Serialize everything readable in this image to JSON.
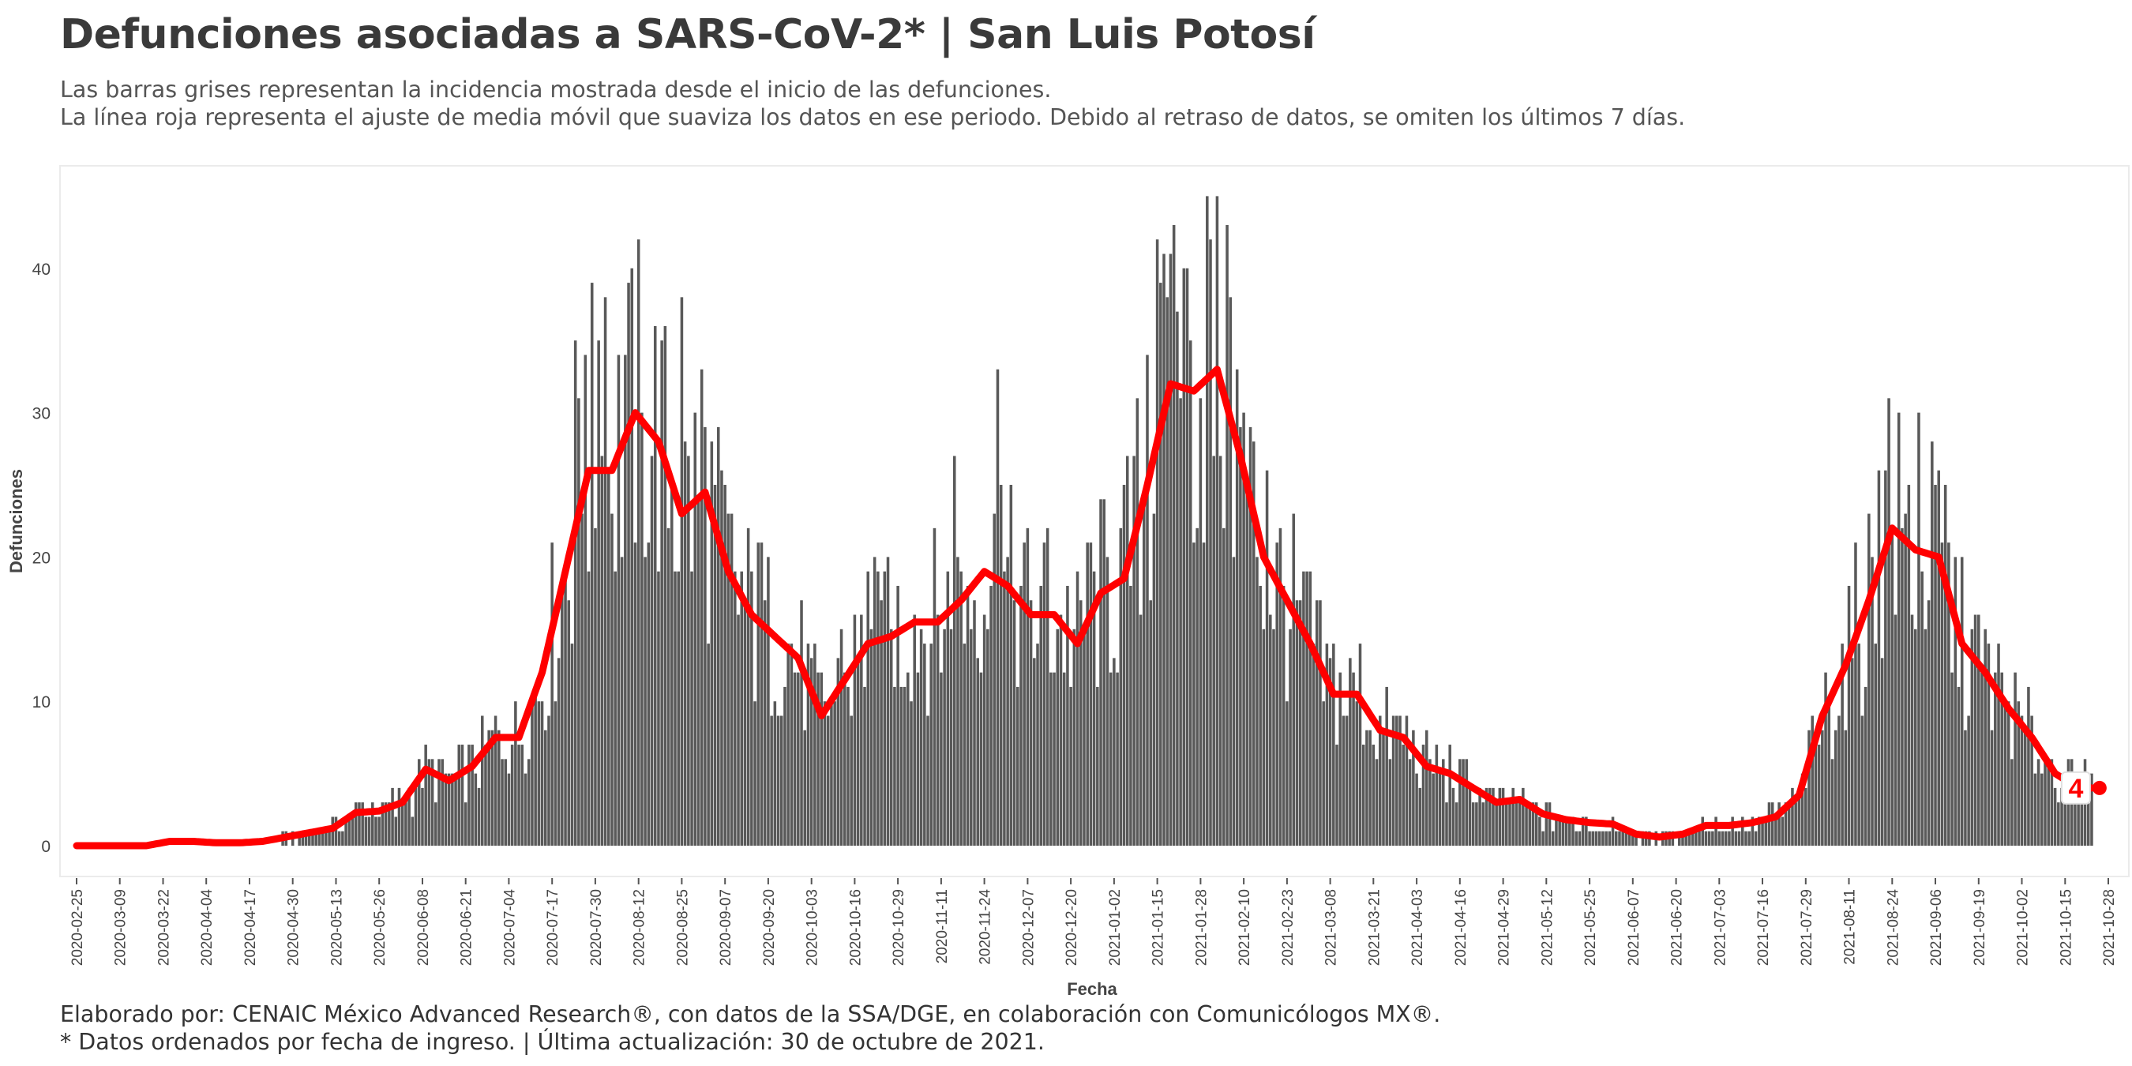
{
  "header": {
    "title": "Defunciones asociadas a SARS-CoV-2* | San Luis Potosí",
    "subtitle_1": "Las barras grises representan la incidencia mostrada desde el inicio de las defunciones.",
    "subtitle_2": "La línea roja representa el ajuste de media móvil que suaviza los datos en ese periodo. Debido al retraso de datos, se omiten los últimos 7 días."
  },
  "footer": {
    "caption_1": "Elaborado por: CENAIC México Advanced Research®, con datos de la SSA/DGE, en colaboración con Comunicólogos MX®.",
    "caption_2": "* Datos ordenados por fecha de ingreso. | Última actualización: 30 de octubre de 2021."
  },
  "colors": {
    "bars": "#595959",
    "moving_average": "#ff0000",
    "end_label_text": "#ff0000"
  },
  "chart_data": {
    "type": "bar",
    "title": "Defunciones asociadas a SARS-CoV-2* | San Luis Potosí",
    "xlabel": "Fecha",
    "ylabel": "Defunciones",
    "x_start": "2020-02-25",
    "x_end": "2021-10-23",
    "xlim": [
      "2020-02-25",
      "2021-10-28"
    ],
    "x_ticks": [
      "2020-02-25",
      "2020-03-09",
      "2020-03-22",
      "2020-04-04",
      "2020-04-17",
      "2020-04-30",
      "2020-05-13",
      "2020-05-26",
      "2020-06-08",
      "2020-06-21",
      "2020-07-04",
      "2020-07-17",
      "2020-07-30",
      "2020-08-12",
      "2020-08-25",
      "2020-09-07",
      "2020-09-20",
      "2020-10-03",
      "2020-10-16",
      "2020-10-29",
      "2020-11-11",
      "2020-11-24",
      "2020-12-07",
      "2020-12-20",
      "2021-01-02",
      "2021-01-15",
      "2021-01-28",
      "2021-02-10",
      "2021-02-23",
      "2021-03-08",
      "2021-03-21",
      "2021-04-03",
      "2021-04-16",
      "2021-04-29",
      "2021-05-12",
      "2021-05-25",
      "2021-06-07",
      "2021-06-20",
      "2021-07-03",
      "2021-07-16",
      "2021-07-29",
      "2021-08-11",
      "2021-08-24",
      "2021-09-06",
      "2021-09-19",
      "2021-10-02",
      "2021-10-15",
      "2021-10-28"
    ],
    "y_ticks": [
      0,
      10,
      20,
      30,
      40
    ],
    "ylim": [
      -2,
      47
    ],
    "grid": false,
    "legend": "none",
    "moving_average_window": 7,
    "end_label": "4",
    "daily_deaths_weekly_profile": [
      [
        "2020-02-25",
        0
      ],
      [
        "2020-03-03",
        0
      ],
      [
        "2020-03-10",
        0
      ],
      [
        "2020-03-17",
        0
      ],
      [
        "2020-03-24",
        0.3
      ],
      [
        "2020-03-31",
        0.3
      ],
      [
        "2020-04-07",
        0.2
      ],
      [
        "2020-04-14",
        0.2
      ],
      [
        "2020-04-21",
        0.3
      ],
      [
        "2020-04-28",
        0.6
      ],
      [
        "2020-05-05",
        0.9
      ],
      [
        "2020-05-12",
        1.2
      ],
      [
        "2020-05-19",
        2.3
      ],
      [
        "2020-05-26",
        2.4
      ],
      [
        "2020-06-02",
        3
      ],
      [
        "2020-06-09",
        5.3
      ],
      [
        "2020-06-16",
        4.5
      ],
      [
        "2020-06-23",
        5.5
      ],
      [
        "2020-06-30",
        7.5
      ],
      [
        "2020-07-07",
        7.5
      ],
      [
        "2020-07-14",
        12
      ],
      [
        "2020-07-21",
        19
      ],
      [
        "2020-07-28",
        26
      ],
      [
        "2020-08-04",
        26
      ],
      [
        "2020-08-11",
        30
      ],
      [
        "2020-08-18",
        28
      ],
      [
        "2020-08-25",
        23
      ],
      [
        "2020-09-01",
        24.5
      ],
      [
        "2020-09-08",
        19
      ],
      [
        "2020-09-15",
        16
      ],
      [
        "2020-09-22",
        14.5
      ],
      [
        "2020-09-29",
        13
      ],
      [
        "2020-10-06",
        9
      ],
      [
        "2020-10-13",
        11.5
      ],
      [
        "2020-10-20",
        14
      ],
      [
        "2020-10-27",
        14.5
      ],
      [
        "2020-11-03",
        15.5
      ],
      [
        "2020-11-10",
        15.5
      ],
      [
        "2020-11-17",
        17
      ],
      [
        "2020-11-24",
        19
      ],
      [
        "2020-12-01",
        18
      ],
      [
        "2020-12-08",
        16
      ],
      [
        "2020-12-15",
        16
      ],
      [
        "2020-12-22",
        14
      ],
      [
        "2020-12-29",
        17.5
      ],
      [
        "2021-01-05",
        18.5
      ],
      [
        "2021-01-12",
        25
      ],
      [
        "2021-01-19",
        32
      ],
      [
        "2021-01-26",
        31.5
      ],
      [
        "2021-02-02",
        33
      ],
      [
        "2021-02-09",
        27
      ],
      [
        "2021-02-16",
        20
      ],
      [
        "2021-02-23",
        17
      ],
      [
        "2021-03-02",
        14
      ],
      [
        "2021-03-09",
        10.5
      ],
      [
        "2021-03-16",
        10.5
      ],
      [
        "2021-03-23",
        8
      ],
      [
        "2021-03-30",
        7.5
      ],
      [
        "2021-04-06",
        5.5
      ],
      [
        "2021-04-13",
        5
      ],
      [
        "2021-04-20",
        4
      ],
      [
        "2021-04-27",
        3
      ],
      [
        "2021-05-04",
        3.2
      ],
      [
        "2021-05-11",
        2.2
      ],
      [
        "2021-05-18",
        1.8
      ],
      [
        "2021-05-25",
        1.6
      ],
      [
        "2021-06-01",
        1.5
      ],
      [
        "2021-06-08",
        0.8
      ],
      [
        "2021-06-15",
        0.6
      ],
      [
        "2021-06-22",
        0.8
      ],
      [
        "2021-06-29",
        1.4
      ],
      [
        "2021-07-06",
        1.4
      ],
      [
        "2021-07-13",
        1.6
      ],
      [
        "2021-07-20",
        2
      ],
      [
        "2021-07-27",
        3.5
      ],
      [
        "2021-08-03",
        9
      ],
      [
        "2021-08-10",
        12.5
      ],
      [
        "2021-08-17",
        17
      ],
      [
        "2021-08-24",
        22
      ],
      [
        "2021-08-31",
        20.5
      ],
      [
        "2021-09-07",
        20
      ],
      [
        "2021-09-14",
        14
      ],
      [
        "2021-09-21",
        12
      ],
      [
        "2021-09-28",
        9.5
      ],
      [
        "2021-10-05",
        7.5
      ],
      [
        "2021-10-12",
        5
      ],
      [
        "2021-10-19",
        4
      ],
      [
        "2021-10-23",
        4
      ]
    ],
    "daily_deaths_peak_days": [
      [
        "2020-07-24",
        35
      ],
      [
        "2020-07-29",
        39
      ],
      [
        "2020-08-02",
        38
      ],
      [
        "2020-08-08",
        34
      ],
      [
        "2020-08-13",
        30
      ],
      [
        "2020-08-25",
        38
      ],
      [
        "2020-09-08",
        23
      ],
      [
        "2020-11-15",
        27
      ],
      [
        "2020-11-28",
        33
      ],
      [
        "2021-01-15",
        42
      ],
      [
        "2021-01-19",
        41
      ],
      [
        "2021-01-23",
        40
      ],
      [
        "2021-01-30",
        45
      ],
      [
        "2021-02-06",
        38
      ],
      [
        "2021-08-20",
        32
      ],
      [
        "2021-08-23",
        31
      ],
      [
        "2021-09-01",
        30
      ]
    ],
    "moving_average_weekly_profile": [
      [
        "2020-02-25",
        0
      ],
      [
        "2020-03-03",
        0
      ],
      [
        "2020-03-10",
        0
      ],
      [
        "2020-03-17",
        0
      ],
      [
        "2020-03-24",
        0.3
      ],
      [
        "2020-03-31",
        0.3
      ],
      [
        "2020-04-07",
        0.2
      ],
      [
        "2020-04-14",
        0.2
      ],
      [
        "2020-04-21",
        0.3
      ],
      [
        "2020-04-28",
        0.6
      ],
      [
        "2020-05-05",
        0.9
      ],
      [
        "2020-05-12",
        1.2
      ],
      [
        "2020-05-19",
        2.3
      ],
      [
        "2020-05-26",
        2.4
      ],
      [
        "2020-06-02",
        3
      ],
      [
        "2020-06-09",
        5.3
      ],
      [
        "2020-06-16",
        4.5
      ],
      [
        "2020-06-23",
        5.5
      ],
      [
        "2020-06-30",
        7.5
      ],
      [
        "2020-07-07",
        7.5
      ],
      [
        "2020-07-14",
        12
      ],
      [
        "2020-07-21",
        19
      ],
      [
        "2020-07-28",
        26
      ],
      [
        "2020-08-04",
        26
      ],
      [
        "2020-08-11",
        30
      ],
      [
        "2020-08-18",
        28
      ],
      [
        "2020-08-25",
        23
      ],
      [
        "2020-09-01",
        24.5
      ],
      [
        "2020-09-08",
        19
      ],
      [
        "2020-09-15",
        16
      ],
      [
        "2020-09-22",
        14.5
      ],
      [
        "2020-09-29",
        13
      ],
      [
        "2020-10-06",
        9
      ],
      [
        "2020-10-13",
        11.5
      ],
      [
        "2020-10-20",
        14
      ],
      [
        "2020-10-27",
        14.5
      ],
      [
        "2020-11-03",
        15.5
      ],
      [
        "2020-11-10",
        15.5
      ],
      [
        "2020-11-17",
        17
      ],
      [
        "2020-11-24",
        19
      ],
      [
        "2020-12-01",
        18
      ],
      [
        "2020-12-08",
        16
      ],
      [
        "2020-12-15",
        16
      ],
      [
        "2020-12-22",
        14
      ],
      [
        "2020-12-29",
        17.5
      ],
      [
        "2021-01-05",
        18.5
      ],
      [
        "2021-01-12",
        25
      ],
      [
        "2021-01-19",
        32
      ],
      [
        "2021-01-26",
        31.5
      ],
      [
        "2021-02-02",
        33
      ],
      [
        "2021-02-09",
        27
      ],
      [
        "2021-02-16",
        20
      ],
      [
        "2021-02-23",
        17
      ],
      [
        "2021-03-02",
        14
      ],
      [
        "2021-03-09",
        10.5
      ],
      [
        "2021-03-16",
        10.5
      ],
      [
        "2021-03-23",
        8
      ],
      [
        "2021-03-30",
        7.5
      ],
      [
        "2021-04-06",
        5.5
      ],
      [
        "2021-04-13",
        5
      ],
      [
        "2021-04-20",
        4
      ],
      [
        "2021-04-27",
        3
      ],
      [
        "2021-05-04",
        3.2
      ],
      [
        "2021-05-11",
        2.2
      ],
      [
        "2021-05-18",
        1.8
      ],
      [
        "2021-05-25",
        1.6
      ],
      [
        "2021-06-01",
        1.5
      ],
      [
        "2021-06-08",
        0.8
      ],
      [
        "2021-06-15",
        0.6
      ],
      [
        "2021-06-22",
        0.8
      ],
      [
        "2021-06-29",
        1.4
      ],
      [
        "2021-07-06",
        1.4
      ],
      [
        "2021-07-13",
        1.6
      ],
      [
        "2021-07-20",
        2
      ],
      [
        "2021-07-27",
        3.5
      ],
      [
        "2021-08-03",
        9
      ],
      [
        "2021-08-10",
        12.5
      ],
      [
        "2021-08-17",
        17
      ],
      [
        "2021-08-24",
        22
      ],
      [
        "2021-08-31",
        20.5
      ],
      [
        "2021-09-07",
        20
      ],
      [
        "2021-09-14",
        14
      ],
      [
        "2021-09-21",
        12
      ],
      [
        "2021-09-28",
        9.5
      ],
      [
        "2021-10-05",
        7.5
      ],
      [
        "2021-10-12",
        5
      ],
      [
        "2021-10-19",
        4
      ],
      [
        "2021-10-23",
        4
      ]
    ]
  }
}
